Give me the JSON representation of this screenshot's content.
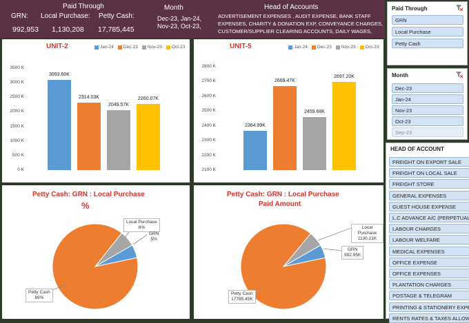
{
  "header": {
    "grn_label": "GRN:",
    "grn_value": "992,953",
    "paid_through_label": "Paid Through",
    "local_purchase_label": "Local Purchase:",
    "local_purchase_value": "1,130,208",
    "petty_cash_label": "Petty Cash:",
    "petty_cash_value": "17,785,445",
    "month_label": "Month",
    "month_value_line1": "Dec-23, Jan-24,",
    "month_value_line2": "Nov-23, Oct-23,",
    "head_label": "Head of Accounts",
    "head_line1": "ADVERTISEMENT EXPENSES , AUDIT EXPENSE, BANK STAFF",
    "head_line2": "EXPENSES, CHARITY & DONATION EXP, CONVEYANCE CHARGES,",
    "head_line3": "CUSTOMER/SUPPLIER CLEARING ACCOUNTS, DAILY WAGES,"
  },
  "colors": {
    "jan24": "#5b9bd5",
    "dec23": "#ed7d31",
    "nov23": "#a5a5a5",
    "oct23": "#ffc000",
    "header_bg": "#5b3146",
    "title_red": "#d6332a"
  },
  "chart_data": [
    {
      "type": "bar",
      "title": "UNIT-2",
      "categories": [
        "Jan-24",
        "Dec-23",
        "Nov-23",
        "Oct-23"
      ],
      "values": [
        3093.6,
        2314.03,
        2049.57,
        2260.07
      ],
      "value_labels": [
        "3093.60K",
        "2314.03K",
        "2049.57K",
        "2260.07K"
      ],
      "legend": [
        "Jan-24",
        "Dec-23",
        "Nov-23",
        "Oct-23"
      ],
      "ylim": [
        0,
        3500
      ],
      "yticks": [
        "0 K",
        "500 K",
        "1000 K",
        "1500 K",
        "2000 K",
        "2500 K",
        "3000 K",
        "3500 K"
      ]
    },
    {
      "type": "bar",
      "title": "UNIT-5",
      "categories": [
        "Jan-24",
        "Dec-23",
        "Nov-23",
        "Oct-23"
      ],
      "values": [
        2364.99,
        2669.47,
        2459.68,
        2697.2
      ],
      "value_labels": [
        "2364.99K",
        "2669.47K",
        "2459.68K",
        "2697.20K"
      ],
      "legend": [
        "Jan-24",
        "Dec-23",
        "Nov-23",
        "Oct-23"
      ],
      "ylim": [
        2100,
        2800
      ],
      "yticks": [
        "2100 K",
        "2200 K",
        "2300 K",
        "2400 K",
        "2500 K",
        "2600 K",
        "2700 K",
        "2800 K"
      ]
    },
    {
      "type": "pie",
      "title": "Petty Cash: GRN : Local Purchase",
      "subtitle": "%",
      "slices": [
        {
          "name": "Petty Cash",
          "value": 89,
          "label": "89%"
        },
        {
          "name": "Local Purchase",
          "value": 6,
          "label": "6%"
        },
        {
          "name": "GRN",
          "value": 5,
          "label": "5%"
        }
      ]
    },
    {
      "type": "pie",
      "title": "Petty Cash: GRN : Local Purchase",
      "subtitle": "Paid Amount",
      "slices": [
        {
          "name": "Petty Cash",
          "value": 17785.45,
          "label": "17785.45K"
        },
        {
          "name": "Local Purchase",
          "value": 1130.21,
          "label": "1130.21K"
        },
        {
          "name": "GRN",
          "value": 992.95,
          "label": "992.95K"
        }
      ]
    }
  ],
  "slicers": {
    "paid_through": {
      "title": "Paid Through",
      "items": [
        "GRN",
        "Local Purchase",
        "Petty Cash"
      ]
    },
    "month": {
      "title": "Month",
      "items": [
        "Dec-23",
        "Jan-24",
        "Nov-23",
        "Oct-23",
        "Sep-23"
      ]
    },
    "head_of_account": {
      "title": "HEAD OF ACCOUNT",
      "items": [
        "FREIGHT ON EXPORT SALE",
        "FREIGHT ON LOCAL SALE",
        "FREIGHT STORE",
        "GENERAL EXPENSES",
        "GUEST HOUSE EXPENSE",
        "L.C ADVANCE A/C (PERPETUAL",
        "LABOUR CHARGES",
        "LABOUR WELFARE",
        "MEDICAL EXPENSES",
        "OFFICE EXPENSE",
        "OFFICE EXPENSES",
        "PLANTATION CHARGES",
        "POSTAGE & TELEGRAM",
        "PRINTING & STATIONERY EXPE",
        "RENTS RATES & TAXES ALLOW"
      ]
    }
  }
}
